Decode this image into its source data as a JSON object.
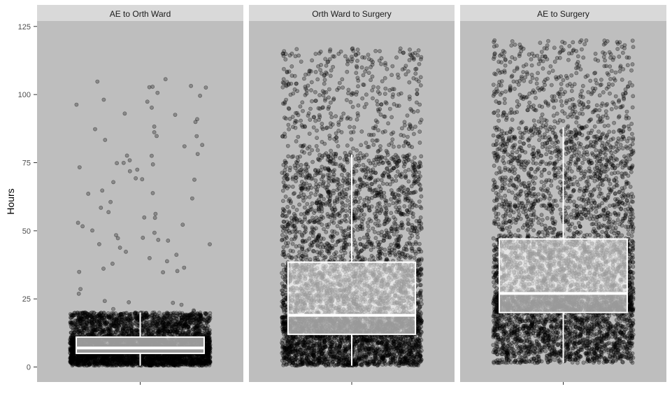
{
  "chart_data": {
    "type": "boxplot-jitter",
    "ylabel": "Hours",
    "ylim": [
      -5.5,
      127
    ],
    "yticks": [
      0,
      25,
      50,
      75,
      100,
      125
    ],
    "colors": {
      "panel_background": "#bebebe",
      "strip_background": "#d9d9d9",
      "box_outline": "#ffffff",
      "point": "#000000"
    },
    "panels": [
      {
        "label": "AE to Orth Ward",
        "box": {
          "min": 0.5,
          "q1": 5,
          "median": 7,
          "q3": 11,
          "whisker_high": 20
        },
        "max_outlier": 107
      },
      {
        "label": "Orth Ward to Surgery",
        "box": {
          "min": 0.5,
          "q1": 12,
          "median": 19,
          "q3": 38.5,
          "whisker_high": 78
        },
        "max_outlier": 117
      },
      {
        "label": "AE to Surgery",
        "box": {
          "min": 1.5,
          "q1": 20,
          "median": 27,
          "q3": 47,
          "whisker_high": 88
        },
        "max_outlier": 120
      }
    ]
  }
}
